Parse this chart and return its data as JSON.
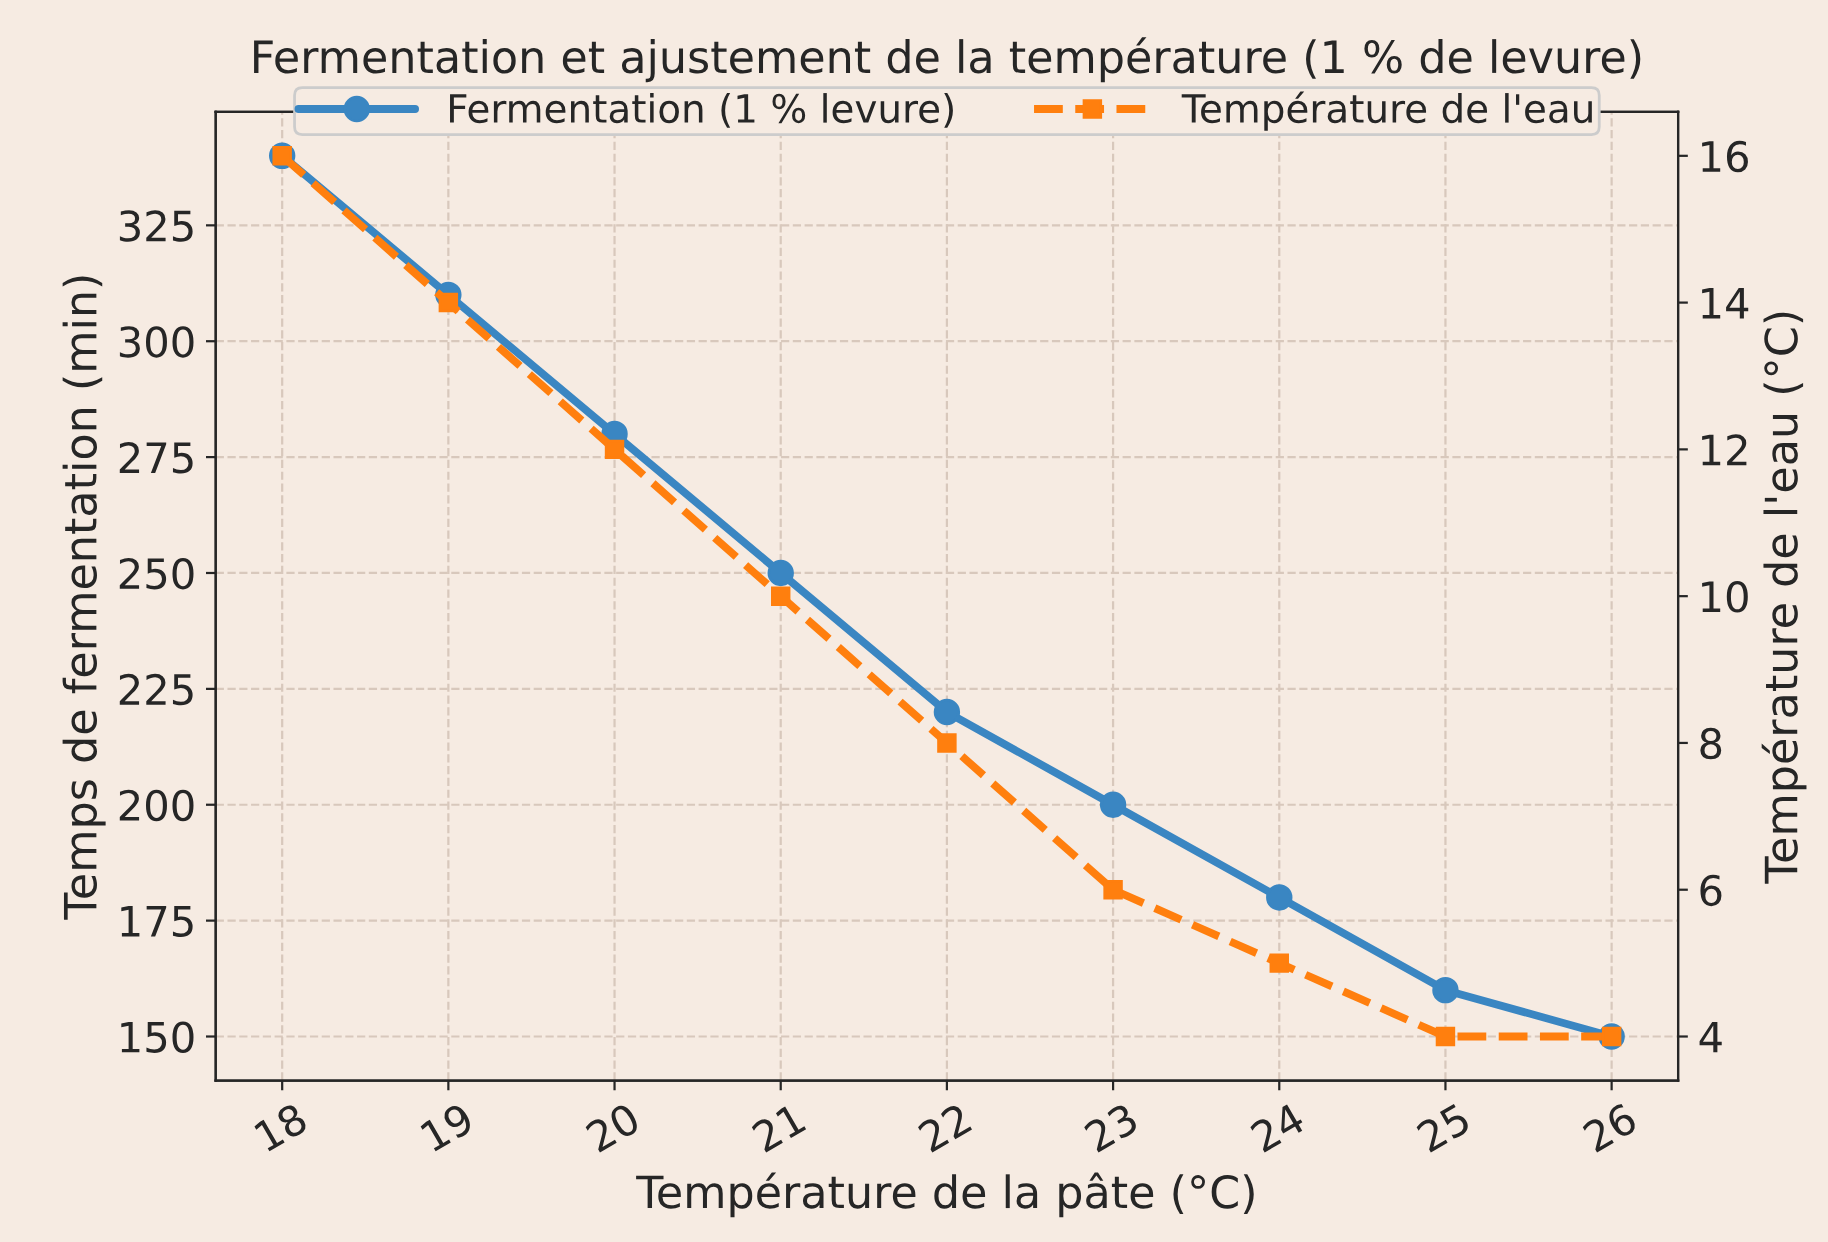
{
  "chart_data": {
    "type": "line",
    "title": "Fermentation et ajustement de la température (1 % de levure)",
    "xlabel": "Température de la pâte (°C)",
    "ylabel": "Temps de fermentation (min)",
    "y2label": "Température de l'eau (°C)",
    "x": [
      18,
      19,
      20,
      21,
      22,
      23,
      24,
      25,
      26
    ],
    "series": [
      {
        "name": "Fermentation (1 % levure)",
        "color": "#3a86c2",
        "values": [
          340,
          310,
          280,
          250,
          220,
          200,
          180,
          160,
          150
        ],
        "marker": "circle",
        "line_style": "solid"
      },
      {
        "name": "Température de l'eau",
        "color": "#ff7f0e",
        "values": [
          16,
          14,
          12,
          10,
          8,
          6,
          5,
          4,
          4
        ],
        "axis": "y2",
        "marker": "square",
        "line_style": "dashed"
      }
    ],
    "xlim": [
      17.6,
      26.4
    ],
    "xticks": [
      18,
      19,
      20,
      21,
      22,
      23,
      24,
      25,
      26
    ],
    "ylim": [
      140.5,
      349.5
    ],
    "yticks": [
      150,
      175,
      200,
      225,
      250,
      275,
      300,
      325
    ],
    "y2lim": [
      3.4,
      16.6
    ],
    "y2ticks": [
      4,
      6,
      8,
      10,
      12,
      14,
      16
    ],
    "grid": true,
    "legend": "top"
  }
}
